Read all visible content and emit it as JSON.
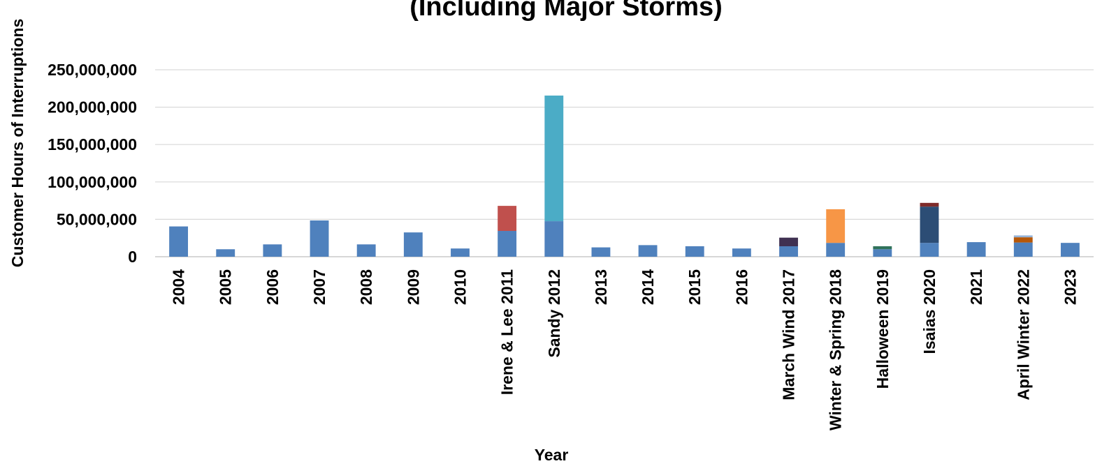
{
  "chart_data": {
    "type": "bar",
    "stacked": true,
    "title": "(Including Major Storms)",
    "xlabel": "Year",
    "ylabel": "Customer Hours of Interruptions",
    "ylim": [
      0,
      250000000
    ],
    "yticks": [
      0,
      50000000,
      100000000,
      150000000,
      200000000,
      250000000
    ],
    "ytick_labels": [
      "0",
      "50,000,000",
      "100,000,000",
      "150,000,000",
      "200,000,000",
      "250,000,000"
    ],
    "grid": true,
    "categories": [
      "2004",
      "2005",
      "2006",
      "2007",
      "2008",
      "2009",
      "2010",
      "Irene & Lee 2011",
      "Sandy 2012",
      "2013",
      "2014",
      "2015",
      "2016",
      "March Wind 2017",
      "Winter & Spring  2018",
      "Halloween 2019",
      "Isaias 2020",
      "2021",
      "April Winter 2022",
      "2023"
    ],
    "series": [
      {
        "color": "#4f81bd",
        "values": [
          40500000,
          10000000,
          16500000,
          48500000,
          16500000,
          32500000,
          11000000,
          34500000,
          47500000,
          12500000,
          15500000,
          14000000,
          11000000,
          14000000,
          18500000,
          10000000,
          18500000,
          19500000,
          19000000,
          18500000
        ]
      },
      {
        "color": "#c0504d",
        "values": [
          0,
          0,
          0,
          0,
          0,
          0,
          0,
          33500000,
          0,
          0,
          0,
          0,
          0,
          0,
          0,
          0,
          0,
          0,
          0,
          0
        ]
      },
      {
        "color": "#4bacc6",
        "values": [
          0,
          0,
          0,
          0,
          0,
          0,
          0,
          0,
          168000000,
          0,
          0,
          0,
          0,
          0,
          0,
          0,
          0,
          0,
          0,
          0
        ]
      },
      {
        "color": "#403152",
        "values": [
          0,
          0,
          0,
          0,
          0,
          0,
          0,
          0,
          0,
          0,
          0,
          0,
          0,
          11500000,
          0,
          0,
          0,
          0,
          0,
          0
        ]
      },
      {
        "color": "#f79646",
        "values": [
          0,
          0,
          0,
          0,
          0,
          0,
          0,
          0,
          0,
          0,
          0,
          0,
          0,
          0,
          45000000,
          0,
          0,
          0,
          0,
          0
        ]
      },
      {
        "color": "#31735b",
        "values": [
          0,
          0,
          0,
          0,
          0,
          0,
          0,
          0,
          0,
          0,
          0,
          0,
          0,
          0,
          0,
          4000000,
          0,
          0,
          0,
          0
        ]
      },
      {
        "color": "#2c4d75",
        "values": [
          0,
          0,
          0,
          0,
          0,
          0,
          0,
          0,
          0,
          0,
          0,
          0,
          0,
          0,
          0,
          0,
          48500000,
          0,
          0,
          0
        ]
      },
      {
        "color": "#7f2b2a",
        "values": [
          0,
          0,
          0,
          0,
          0,
          0,
          0,
          0,
          0,
          0,
          0,
          0,
          0,
          0,
          0,
          0,
          5000000,
          0,
          0,
          0
        ]
      },
      {
        "color": "#b65708",
        "values": [
          0,
          0,
          0,
          0,
          0,
          0,
          0,
          0,
          0,
          0,
          0,
          0,
          0,
          0,
          0,
          0,
          0,
          0,
          7000000,
          0
        ]
      },
      {
        "color": "#95b3d7",
        "values": [
          0,
          0,
          0,
          0,
          0,
          0,
          0,
          0,
          0,
          0,
          0,
          0,
          0,
          0,
          0,
          0,
          0,
          0,
          2500000,
          0
        ]
      }
    ]
  }
}
